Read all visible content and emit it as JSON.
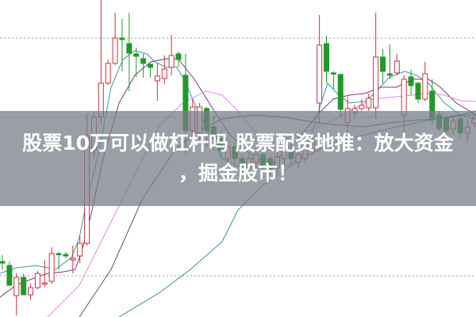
{
  "title_line1": "股票10万可以做杠杆吗 股票配资地推：放大资金",
  "title_line2": "，掘金股市！",
  "colors": {
    "up": "#c8323c",
    "down": "#1f9a2a",
    "ma5": "#3a9aa0",
    "ma10": "#7a3a78",
    "ma20": "#e08ae0",
    "ma30": "#3a6a3a",
    "ma60": "#3a8a9a",
    "grid": "#999999",
    "overlay": "#787e88"
  },
  "chart_data": {
    "type": "candlestick",
    "grid": true,
    "gridlines": [
      352,
      252,
      52
    ],
    "candles": [
      [
        70,
        68,
        78,
        60
      ],
      [
        65,
        40,
        70,
        40
      ],
      [
        27,
        50,
        55,
        2
      ],
      [
        50,
        28,
        55,
        28
      ],
      [
        28,
        37,
        42,
        22
      ],
      [
        37,
        55,
        58,
        35
      ],
      [
        42,
        43,
        72,
        38
      ],
      [
        45,
        80,
        88,
        42
      ],
      [
        80,
        79,
        82,
        60
      ],
      [
        79,
        77,
        82,
        74
      ],
      [
        72,
        74,
        90,
        55
      ],
      [
        77,
        93,
        102,
        68
      ],
      [
        93,
        228,
        257,
        90
      ],
      [
        210,
        252,
        260,
        200
      ],
      [
        253,
        295,
        400,
        243
      ],
      [
        295,
        320,
        325,
        293
      ],
      [
        320,
        352,
        384,
        318
      ],
      [
        352,
        350,
        376,
        310
      ],
      [
        345,
        333,
        384,
        285
      ],
      [
        332,
        329,
        340,
        303
      ],
      [
        326,
        320,
        332,
        302
      ],
      [
        319,
        315,
        320,
        302
      ],
      [
        298,
        304,
        320,
        273
      ],
      [
        301,
        313,
        330,
        294
      ],
      [
        315,
        330,
        356,
        305
      ],
      [
        332,
        325,
        335,
        315
      ],
      [
        305,
        235,
        332,
        205
      ],
      [
        235,
        265,
        275,
        215
      ],
      [
        232,
        265,
        270,
        220
      ],
      [
        263,
        235,
        265,
        215
      ],
      [
        240,
        225,
        255,
        210
      ],
      [
        225,
        210,
        235,
        200
      ],
      [
        200,
        215,
        225,
        195
      ],
      [
        215,
        200,
        220,
        190
      ],
      [
        200,
        190,
        205,
        180
      ],
      [
        188,
        200,
        205,
        180
      ],
      [
        195,
        205,
        210,
        188
      ],
      [
        205,
        192,
        210,
        185
      ],
      [
        200,
        185,
        205,
        178
      ],
      [
        188,
        202,
        208,
        182
      ],
      [
        200,
        210,
        215,
        192
      ],
      [
        210,
        200,
        215,
        195
      ],
      [
        195,
        205,
        210,
        188
      ],
      [
        200,
        215,
        220,
        195
      ],
      [
        210,
        222,
        230,
        205
      ],
      [
        270,
        343,
        381,
        245
      ],
      [
        345,
        310,
        355,
        295
      ],
      [
        308,
        307,
        310,
        287
      ],
      [
        306,
        262,
        307,
        252
      ],
      [
        245,
        263,
        278,
        232
      ],
      [
        258,
        263,
        268,
        252
      ],
      [
        263,
        267,
        275,
        260
      ],
      [
        264,
        276,
        282,
        260
      ],
      [
        264,
        328,
        384,
        250
      ],
      [
        328,
        310,
        338,
        295
      ],
      [
        307,
        305,
        344,
        300
      ],
      [
        308,
        323,
        332,
        305
      ],
      [
        255,
        300,
        305,
        230
      ],
      [
        303,
        292,
        312,
        280
      ],
      [
        295,
        275,
        297,
        270
      ],
      [
        275,
        307,
        322,
        272
      ],
      [
        285,
        250,
        300,
        242
      ],
      [
        255,
        238,
        260,
        235
      ],
      [
        252,
        235,
        255,
        232
      ],
      [
        237,
        247,
        252,
        230
      ],
      [
        250,
        232,
        255,
        225
      ],
      [
        232,
        240,
        250,
        220
      ],
      [
        245,
        250,
        255,
        240
      ]
    ],
    "moving_averages": [
      {
        "key": "ma5",
        "points": [
          [
            0,
            55
          ],
          [
            20,
            62
          ],
          [
            45,
            65
          ],
          [
            70,
            60
          ],
          [
            90,
            75
          ],
          [
            100,
            100
          ],
          [
            110,
            150
          ],
          [
            125,
            210
          ],
          [
            140,
            290
          ],
          [
            155,
            325
          ],
          [
            170,
            336
          ],
          [
            185,
            332
          ],
          [
            195,
            322
          ],
          [
            210,
            315
          ],
          [
            222,
            316
          ],
          [
            232,
            300
          ],
          [
            245,
            270
          ],
          [
            260,
            240
          ],
          [
            280,
            200
          ],
          [
            300,
            190
          ],
          [
            320,
            200
          ],
          [
            340,
            195
          ],
          [
            360,
            190
          ],
          [
            385,
            205
          ],
          [
            400,
            255
          ],
          [
            413,
            295
          ],
          [
            425,
            282
          ],
          [
            440,
            270
          ],
          [
            460,
            272
          ],
          [
            475,
            285
          ],
          [
            490,
            302
          ],
          [
            510,
            310
          ],
          [
            525,
            305
          ],
          [
            540,
            295
          ],
          [
            560,
            270
          ],
          [
            580,
            255
          ],
          [
            600,
            250
          ]
        ]
      },
      {
        "key": "ma10",
        "points": [
          [
            0,
            25
          ],
          [
            20,
            40
          ],
          [
            40,
            48
          ],
          [
            60,
            55
          ],
          [
            80,
            57
          ],
          [
            95,
            60
          ],
          [
            105,
            90
          ],
          [
            115,
            130
          ],
          [
            130,
            200
          ],
          [
            150,
            270
          ],
          [
            170,
            305
          ],
          [
            190,
            322
          ],
          [
            210,
            326
          ],
          [
            225,
            325
          ],
          [
            245,
            300
          ],
          [
            270,
            260
          ],
          [
            290,
            230
          ],
          [
            310,
            210
          ],
          [
            340,
            190
          ],
          [
            380,
            230
          ],
          [
            400,
            255
          ],
          [
            420,
            275
          ],
          [
            440,
            280
          ],
          [
            460,
            282
          ],
          [
            480,
            290
          ],
          [
            500,
            290
          ],
          [
            520,
            300
          ],
          [
            540,
            300
          ],
          [
            555,
            290
          ],
          [
            575,
            270
          ],
          [
            600,
            255
          ]
        ]
      },
      {
        "key": "ma20",
        "points": [
          [
            60,
            0
          ],
          [
            100,
            40
          ],
          [
            130,
            100
          ],
          [
            160,
            160
          ],
          [
            200,
            240
          ],
          [
            230,
            270
          ],
          [
            260,
            285
          ],
          [
            280,
            280
          ],
          [
            300,
            260
          ],
          [
            320,
            235
          ],
          [
            340,
            220
          ],
          [
            360,
            225
          ],
          [
            390,
            235
          ],
          [
            420,
            248
          ],
          [
            440,
            260
          ],
          [
            470,
            275
          ],
          [
            500,
            278
          ],
          [
            520,
            280
          ],
          [
            540,
            282
          ],
          [
            560,
            280
          ],
          [
            580,
            273
          ],
          [
            600,
            272
          ]
        ]
      },
      {
        "key": "ma30",
        "points": [
          [
            100,
            0
          ],
          [
            140,
            60
          ],
          [
            180,
            150
          ],
          [
            220,
            210
          ],
          [
            250,
            235
          ],
          [
            280,
            250
          ],
          [
            320,
            255
          ],
          [
            360,
            252
          ],
          [
            400,
            245
          ],
          [
            430,
            242
          ],
          [
            460,
            240
          ],
          [
            490,
            245
          ],
          [
            520,
            248
          ],
          [
            550,
            250
          ],
          [
            580,
            255
          ],
          [
            600,
            260
          ]
        ]
      },
      {
        "key": "ma60",
        "points": [
          [
            150,
            0
          ],
          [
            200,
            30
          ],
          [
            240,
            60
          ],
          [
            280,
            95
          ],
          [
            300,
            135
          ],
          [
            330,
            165
          ],
          [
            380,
            200
          ],
          [
            420,
            220
          ],
          [
            460,
            230
          ],
          [
            500,
            240
          ],
          [
            540,
            248
          ],
          [
            580,
            254
          ],
          [
            600,
            256
          ]
        ]
      }
    ]
  }
}
